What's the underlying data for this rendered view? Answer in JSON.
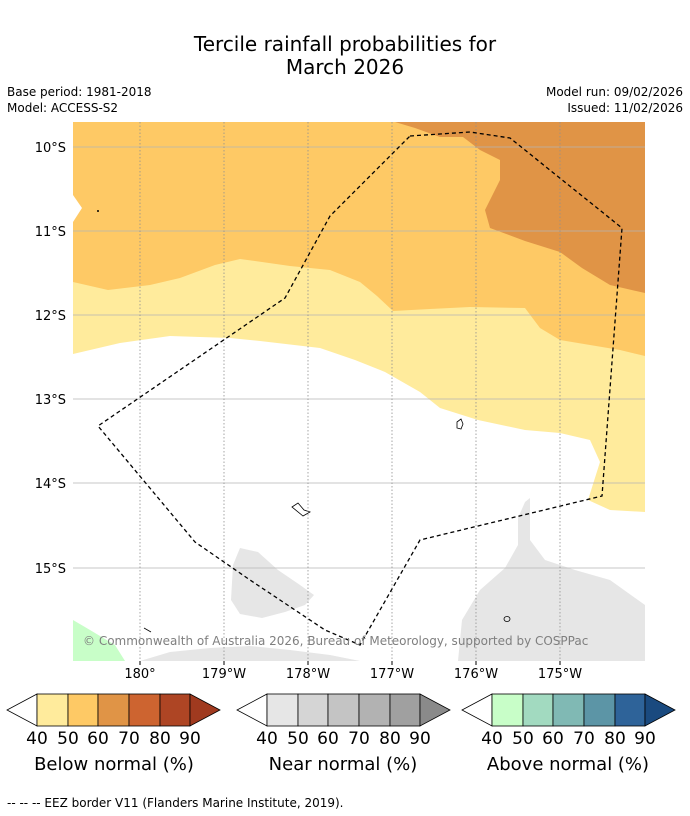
{
  "title": {
    "line1": "Tercile rainfall probabilities for",
    "line2": "March 2026"
  },
  "meta": {
    "base_period": "Base period: 1981-2018",
    "model": "Model: ACCESS-S2",
    "model_run": "Model run: 09/02/2026",
    "issued": "Issued: 11/02/2026"
  },
  "map": {
    "lat_labels": [
      "10°S",
      "11°S",
      "12°S",
      "13°S",
      "14°S",
      "15°S"
    ],
    "lon_labels": [
      "180°",
      "179°W",
      "178°W",
      "177°W",
      "176°W",
      "175°W"
    ],
    "copyright": "© Commonwealth of Australia 2026, Bureau of Meteorology, supported by COSPPac",
    "colors": {
      "below_40": "#ffeb9c",
      "below_50": "#fec965",
      "below_60": "#e09446",
      "grey_40": "#e6e6e6",
      "green_40": "#c8fec8"
    }
  },
  "legend": {
    "ticks": [
      "40",
      "50",
      "60",
      "70",
      "80",
      "90"
    ],
    "below": {
      "title": "Below normal (%)",
      "colors": [
        "#ffeb9c",
        "#fec965",
        "#e09446",
        "#cd6430",
        "#ae4524",
        "#a03a1f"
      ]
    },
    "near": {
      "title": "Near normal (%)",
      "colors": [
        "#e6e6e6",
        "#d5d5d5",
        "#c4c4c4",
        "#b2b2b2",
        "#a0a0a0",
        "#8a8a8a"
      ]
    },
    "above": {
      "title": "Above normal (%)",
      "colors": [
        "#c8fec8",
        "#a2dac0",
        "#80b9b4",
        "#5c95a6",
        "#2e6399",
        "#1a4a7f"
      ]
    }
  },
  "footnote": "--  --  -- EEZ border V11 (Flanders Marine Institute, 2019)."
}
